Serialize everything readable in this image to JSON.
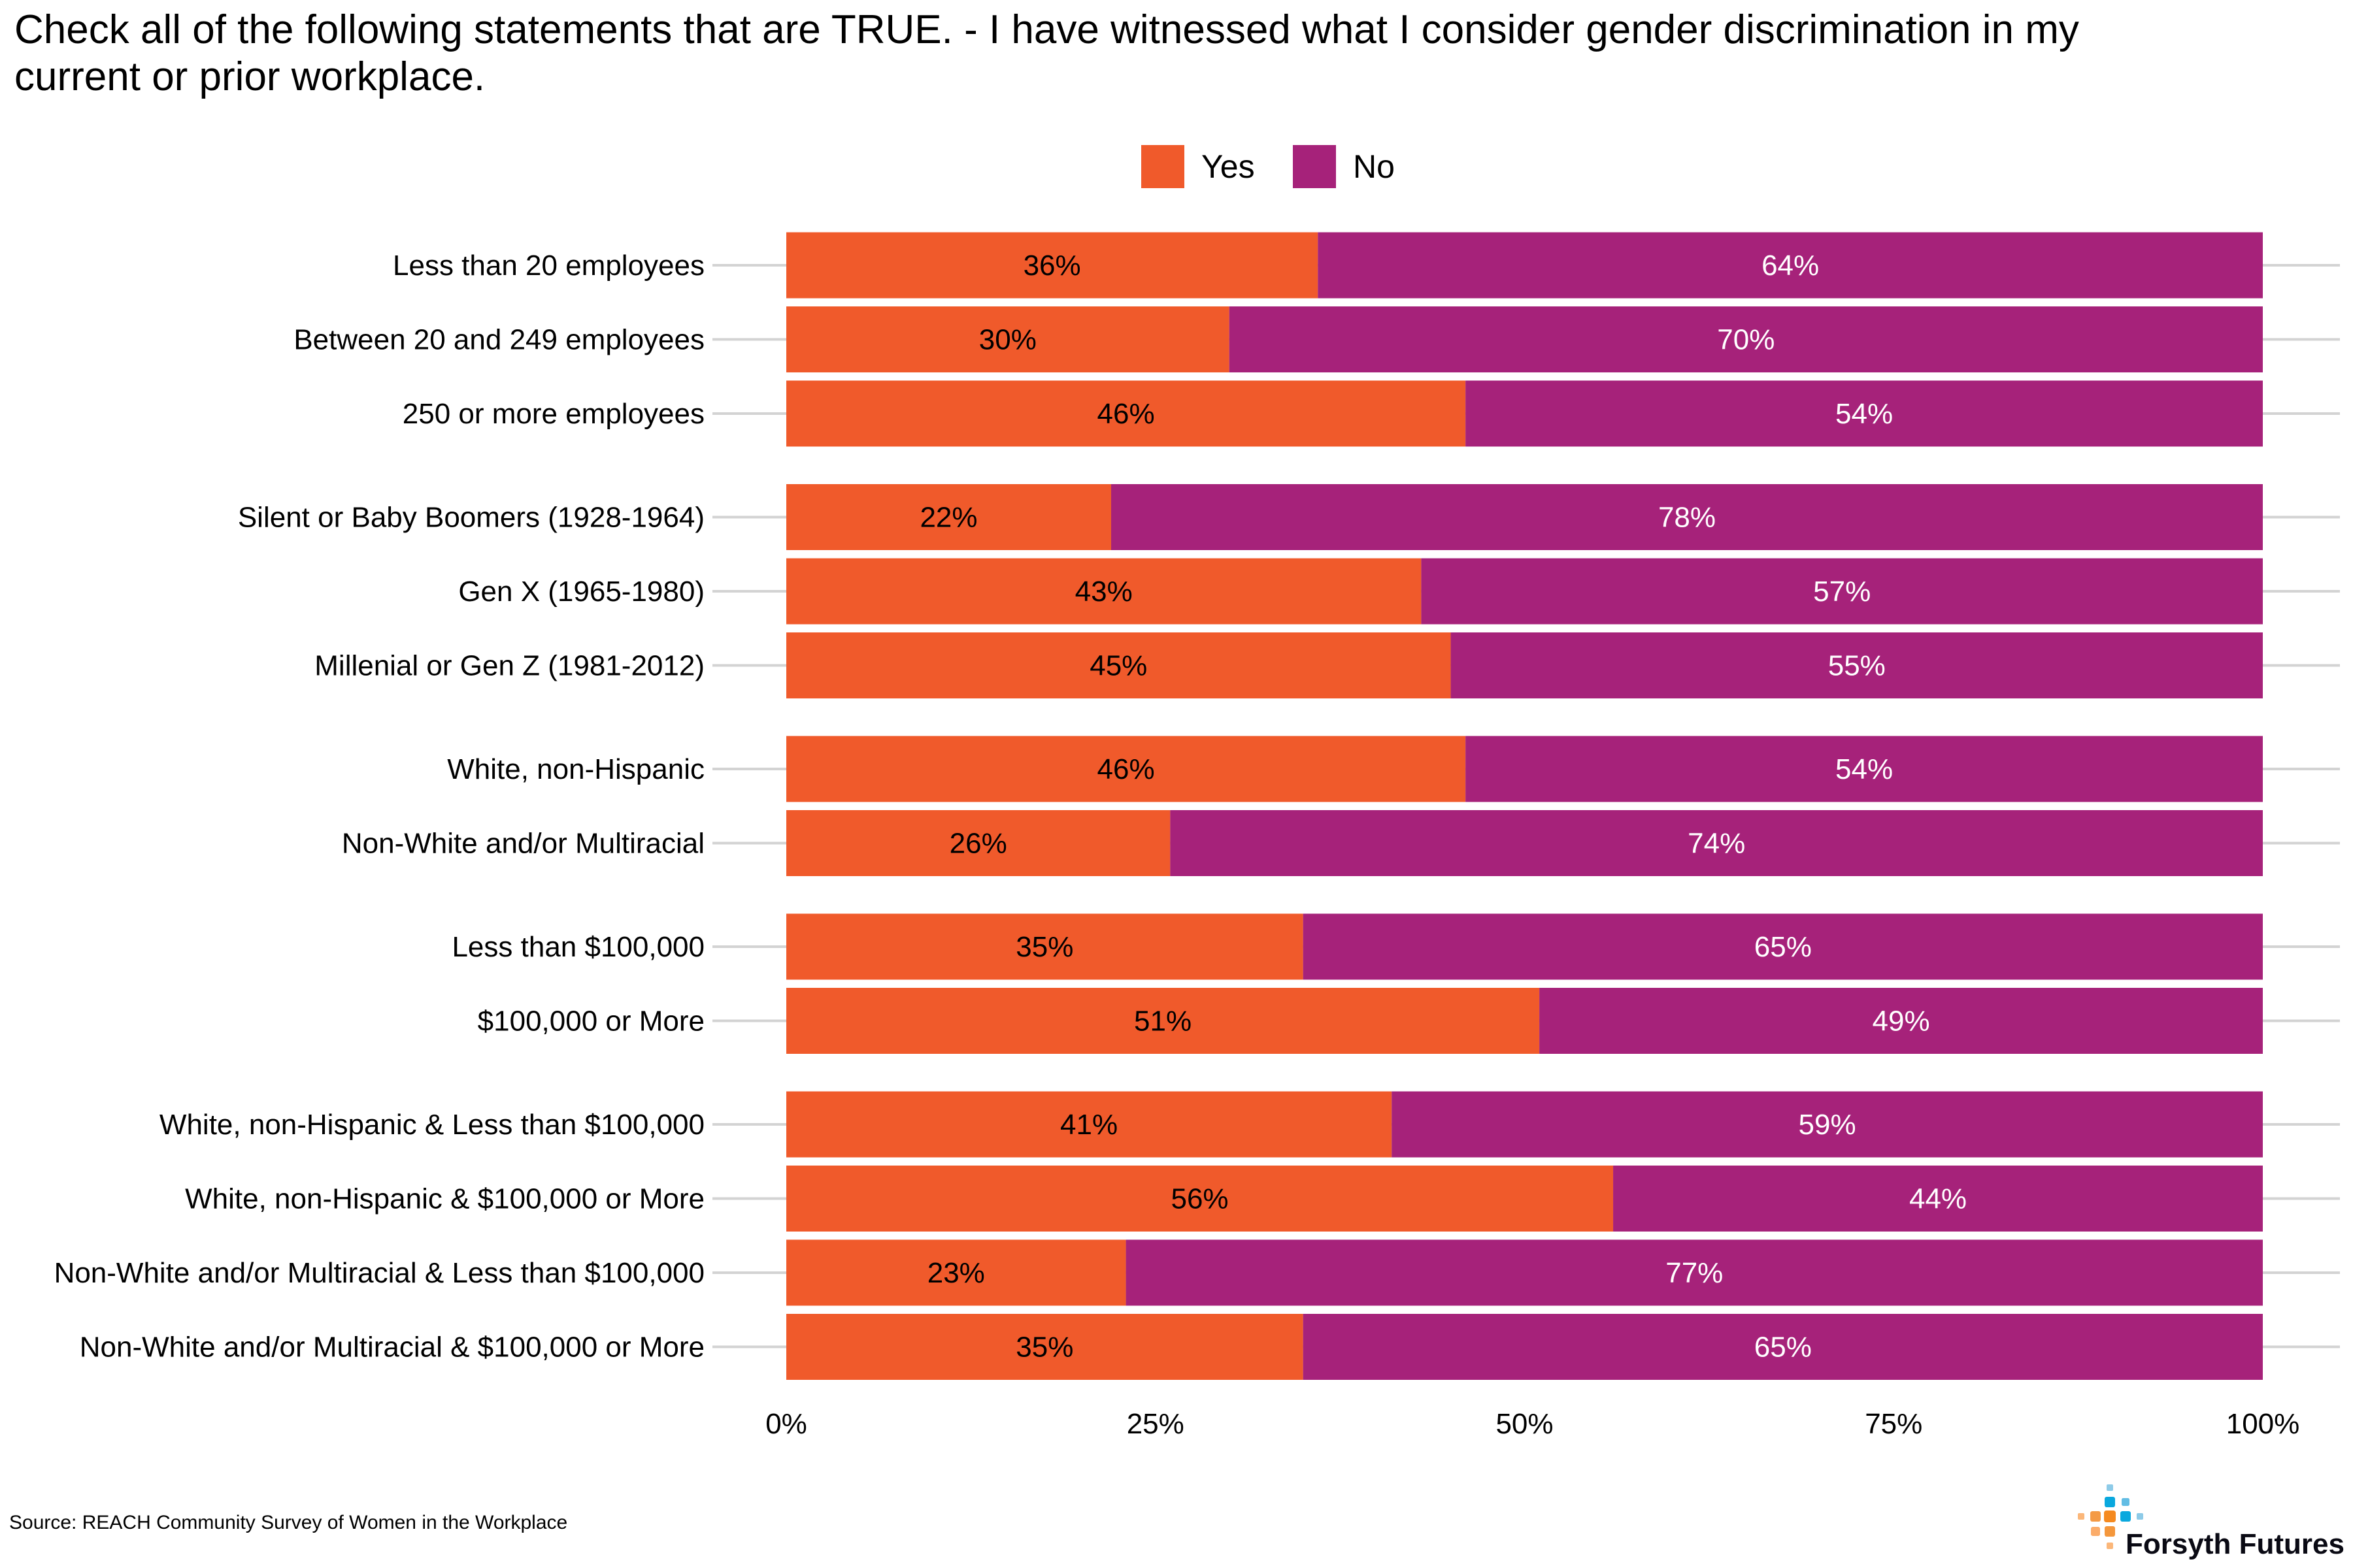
{
  "chart_data": {
    "type": "bar",
    "orientation": "horizontal",
    "stacked": true,
    "title": "Check all of the following statements that are TRUE. - I have witnessed what I consider gender discrimination in my current or prior workplace.",
    "title_lines": [
      "Check all of the following statements that are TRUE. - I have witnessed what I consider gender discrimination in my",
      "current or prior workplace."
    ],
    "legend_position": "top",
    "xlim": [
      0,
      100
    ],
    "x_ticks": [
      "0%",
      "25%",
      "50%",
      "75%",
      "100%"
    ],
    "groups": [
      [
        "Less than 20 employees",
        "Between 20 and 249 employees",
        "250 or more employees"
      ],
      [
        "Silent or Baby Boomers (1928-1964)",
        "Gen X (1965-1980)",
        "Millenial or Gen Z (1981-2012)"
      ],
      [
        "White, non-Hispanic",
        "Non-White and/or Multiracial"
      ],
      [
        "Less than $100,000",
        "$100,000 or More"
      ],
      [
        "White, non-Hispanic & Less than $100,000",
        "White, non-Hispanic & $100,000 or More",
        "Non-White and/or Multiracial & Less than $100,000",
        "Non-White and/or Multiracial & $100,000 or More"
      ]
    ],
    "categories": [
      "Less than 20 employees",
      "Between 20 and 249 employees",
      "250 or more employees",
      "Silent or Baby Boomers (1928-1964)",
      "Gen X (1965-1980)",
      "Millenial or Gen Z (1981-2012)",
      "White, non-Hispanic",
      "Non-White and/or Multiracial",
      "Less than $100,000",
      "$100,000 or More",
      "White, non-Hispanic & Less than $100,000",
      "White, non-Hispanic & $100,000 or More",
      "Non-White and/or Multiracial & Less than $100,000",
      "Non-White and/or Multiracial & $100,000 or More"
    ],
    "series": [
      {
        "name": "Yes",
        "color": "#F05A2B",
        "label_color": "#000000",
        "values": [
          36,
          30,
          46,
          22,
          43,
          45,
          46,
          26,
          35,
          51,
          41,
          56,
          23,
          35
        ]
      },
      {
        "name": "No",
        "color": "#A6227A",
        "label_color": "#FFFFFF",
        "values": [
          64,
          70,
          54,
          78,
          57,
          55,
          54,
          74,
          65,
          49,
          59,
          44,
          77,
          65
        ]
      }
    ],
    "grid": "horizontal major lines"
  },
  "footer": {
    "source": "Source: REACH Community Survey of Women in the Workplace",
    "logo_text": "Forsyth Futures"
  }
}
